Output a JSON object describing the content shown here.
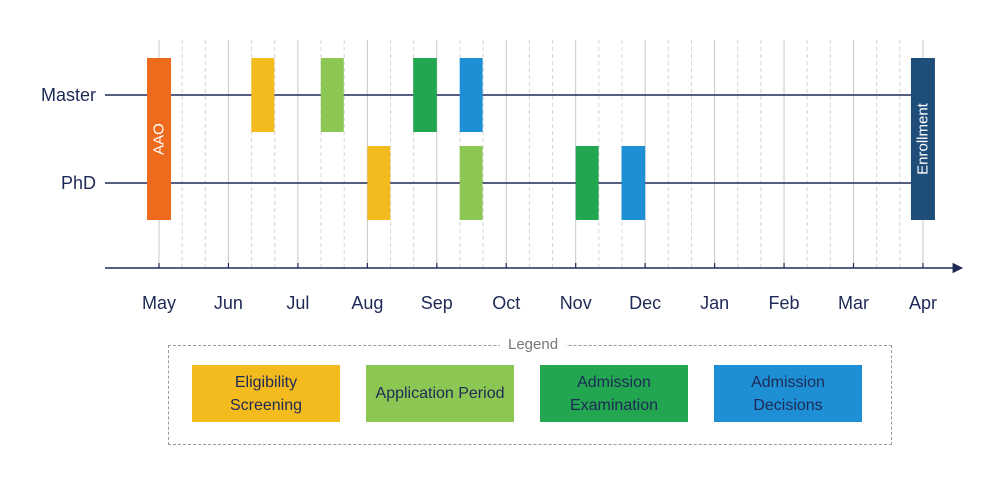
{
  "chart_data": {
    "type": "timeline",
    "months": [
      "May",
      "Jun",
      "Jul",
      "Aug",
      "Sep",
      "Oct",
      "Nov",
      "Dec",
      "Jan",
      "Feb",
      "Mar",
      "Apr"
    ],
    "rows": [
      "Master",
      "PhD"
    ],
    "milestones": [
      {
        "label": "AAO",
        "month": 0.0,
        "color": "#ee6a1c"
      },
      {
        "label": "Enrollment",
        "month": 11.0,
        "color": "#1f4d7a"
      }
    ],
    "phases": [
      {
        "row": "Master",
        "category": "eligibility",
        "start": 1.33,
        "end": 1.66
      },
      {
        "row": "Master",
        "category": "application",
        "start": 2.33,
        "end": 2.66
      },
      {
        "row": "Master",
        "category": "examination",
        "start": 3.66,
        "end": 4.0
      },
      {
        "row": "Master",
        "category": "decisions",
        "start": 4.33,
        "end": 4.66
      },
      {
        "row": "PhD",
        "category": "eligibility",
        "start": 3.0,
        "end": 3.33
      },
      {
        "row": "PhD",
        "category": "application",
        "start": 4.33,
        "end": 4.66
      },
      {
        "row": "PhD",
        "category": "examination",
        "start": 6.0,
        "end": 6.33
      },
      {
        "row": "PhD",
        "category": "decisions",
        "start": 6.66,
        "end": 7.0
      }
    ],
    "legend_title": "Legend",
    "legend": [
      {
        "key": "eligibility",
        "label": "Eligibility Screening",
        "color": "#f3bb1d"
      },
      {
        "key": "application",
        "label": "Application Period",
        "color": "#8cc753"
      },
      {
        "key": "examination",
        "label": "Admission Examination",
        "color": "#22a650"
      },
      {
        "key": "decisions",
        "label": "Admission Decisions",
        "color": "#1e8fd4"
      }
    ],
    "axis_color": "#1e2a56"
  }
}
